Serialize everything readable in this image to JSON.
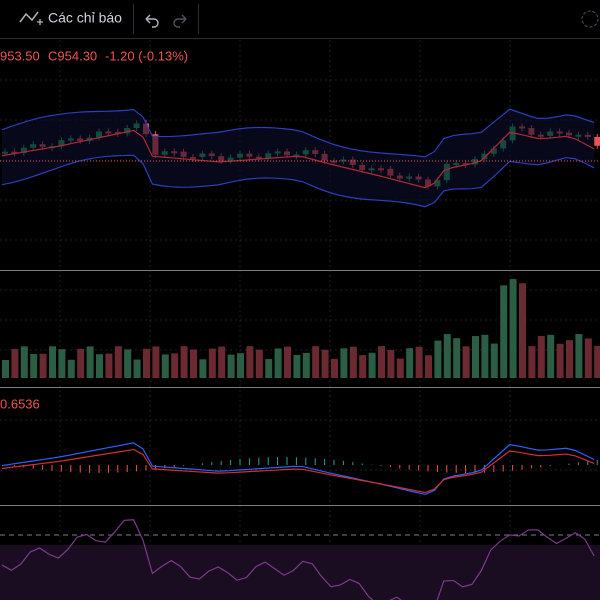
{
  "toolbar": {
    "indicators": "Các chỉ báo"
  },
  "legend": {
    "low": "953.50",
    "close": "C954.30",
    "change": "-1.20 (-0.13%)"
  },
  "macd": {
    "value": "0.6536"
  }
}
